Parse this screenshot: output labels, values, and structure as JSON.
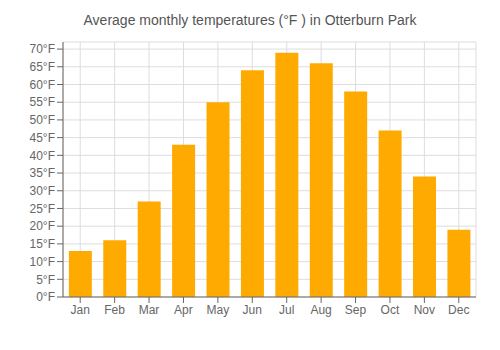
{
  "chart_data": {
    "type": "bar",
    "title": "Average monthly temperatures (°F ) in Otterburn Park",
    "categories": [
      "Jan",
      "Feb",
      "Mar",
      "Apr",
      "May",
      "Jun",
      "Jul",
      "Aug",
      "Sep",
      "Oct",
      "Nov",
      "Dec"
    ],
    "values": [
      13,
      16,
      27,
      43,
      55,
      64,
      69,
      66,
      58,
      47,
      34,
      19
    ],
    "color": "#FFAA00",
    "ylim": [
      0,
      72
    ],
    "yticks": [
      {
        "value": 0,
        "label": "0°F"
      },
      {
        "value": 5,
        "label": "5°F"
      },
      {
        "value": 10,
        "label": "10°F"
      },
      {
        "value": 15,
        "label": "15°F"
      },
      {
        "value": 20,
        "label": "20°F"
      },
      {
        "value": 25,
        "label": "25°F"
      },
      {
        "value": 30,
        "label": "30°F"
      },
      {
        "value": 35,
        "label": "35°F"
      },
      {
        "value": 40,
        "label": "40°F"
      },
      {
        "value": 45,
        "label": "45°F"
      },
      {
        "value": 50,
        "label": "50°F"
      },
      {
        "value": 55,
        "label": "55°F"
      },
      {
        "value": 60,
        "label": "60°F"
      },
      {
        "value": 65,
        "label": "65°F"
      },
      {
        "value": 70,
        "label": "70°F"
      }
    ],
    "grid": true
  }
}
